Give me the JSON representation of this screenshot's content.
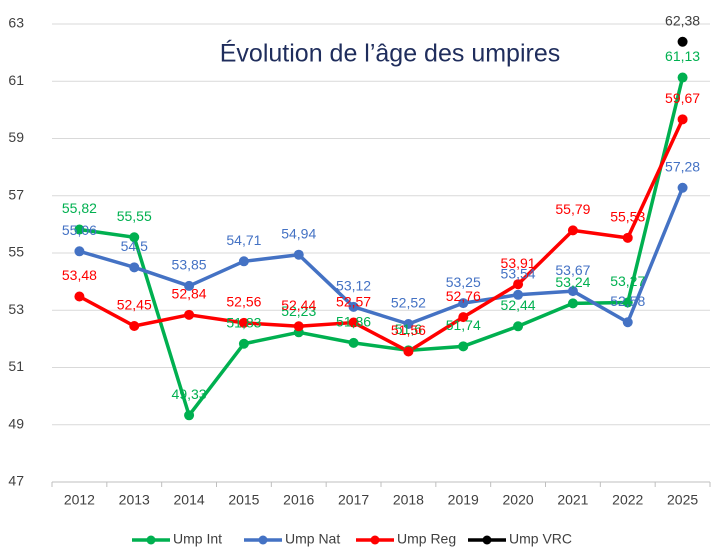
{
  "chart_data": {
    "type": "line",
    "title": "Évolution de l’âge des umpires",
    "categories": [
      "2012",
      "2013",
      "2014",
      "2015",
      "2016",
      "2017",
      "2018",
      "2019",
      "2020",
      "2021",
      "2022",
      "2025"
    ],
    "ylim": [
      47,
      63
    ],
    "yticks": [
      47,
      49,
      51,
      53,
      55,
      57,
      59,
      61,
      63
    ],
    "grid": true,
    "legend": "bottom",
    "series": [
      {
        "name": "Ump Int",
        "color": "#00b050",
        "values": [
          55.82,
          55.55,
          49.33,
          51.83,
          52.23,
          51.86,
          51.6,
          51.74,
          52.44,
          53.24,
          53.27,
          61.13
        ],
        "value_labels": [
          "55,82",
          "55,55",
          "49,33",
          "51,83",
          "52,23",
          "51,86",
          "51,6",
          "51,74",
          "52,44",
          "53,24",
          "53,27",
          "61,13"
        ]
      },
      {
        "name": "Ump Nat",
        "color": "#4472c4",
        "values": [
          55.06,
          54.5,
          53.85,
          54.71,
          54.94,
          53.12,
          52.52,
          53.25,
          53.54,
          53.67,
          52.58,
          57.28
        ],
        "value_labels": [
          "55,06",
          "54,5",
          "53,85",
          "54,71",
          "54,94",
          "53,12",
          "52,52",
          "53,25",
          "53,54",
          "53,67",
          "52,58",
          "57,28"
        ]
      },
      {
        "name": "Ump Reg",
        "color": "#ff0000",
        "values": [
          53.48,
          52.45,
          52.84,
          52.56,
          52.44,
          52.57,
          51.56,
          52.76,
          53.91,
          55.79,
          55.53,
          59.67
        ],
        "value_labels": [
          "53,48",
          "52,45",
          "52,84",
          "52,56",
          "52,44",
          "52,57",
          "51,56",
          "52,76",
          "53,91",
          "55,79",
          "55,53",
          "59,67"
        ]
      },
      {
        "name": "Ump VRC",
        "color": "#000000",
        "values": [
          null,
          null,
          null,
          null,
          null,
          null,
          null,
          null,
          null,
          null,
          null,
          62.38
        ],
        "value_labels": [
          null,
          null,
          null,
          null,
          null,
          null,
          null,
          null,
          null,
          null,
          null,
          "62,38"
        ]
      }
    ]
  }
}
